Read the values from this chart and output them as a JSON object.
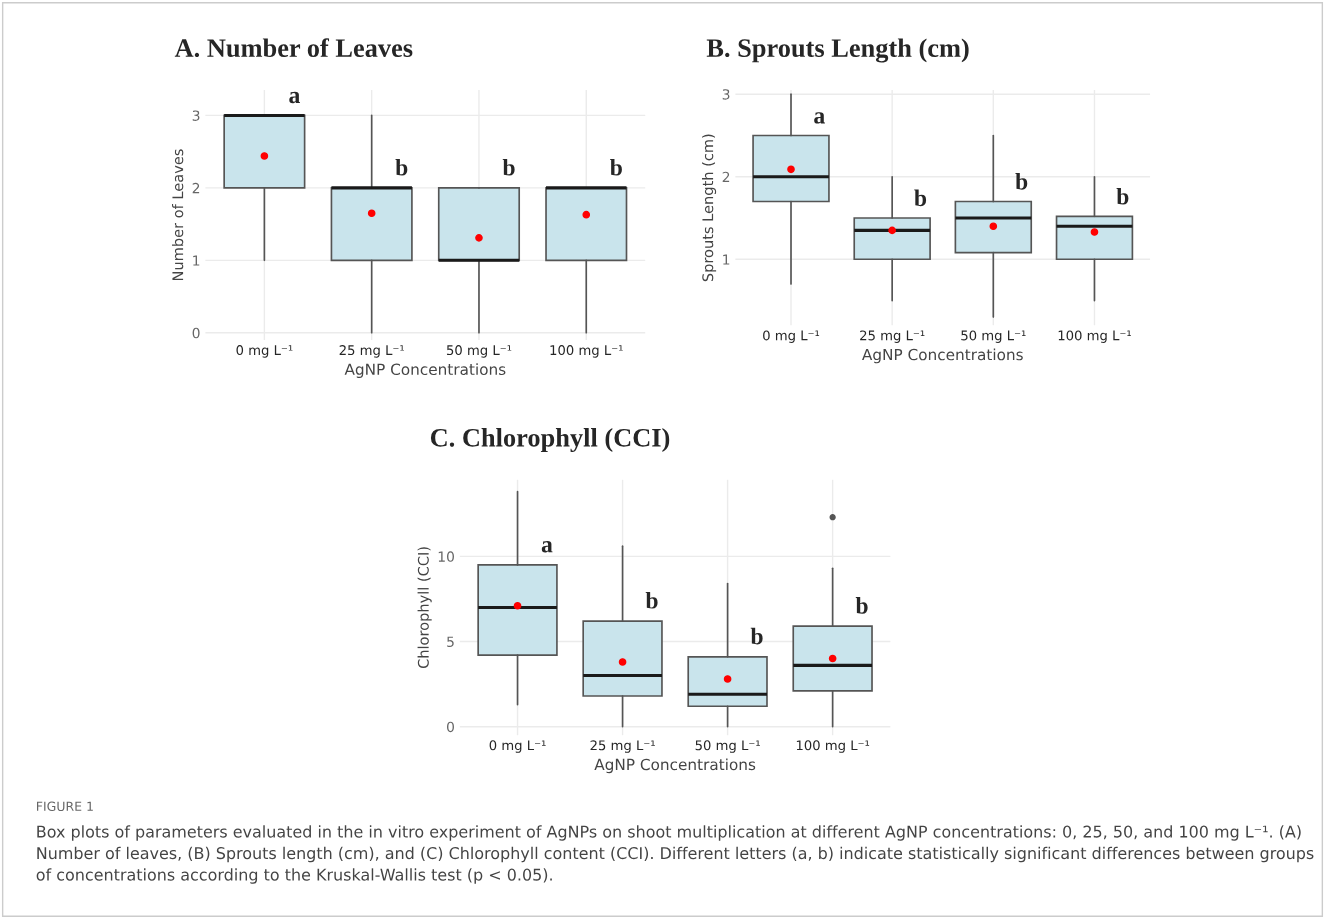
{
  "chart_data": [
    {
      "type": "box",
      "title": "A. Number of Leaves",
      "xlabel": "AgNP Concentrations",
      "ylabel": "Number of Leaves",
      "categories": [
        "0 mg L⁻¹",
        "25 mg L⁻¹",
        "50 mg L⁻¹",
        "100 mg L⁻¹"
      ],
      "ylim": [
        -0.1,
        3.35
      ],
      "yticks": [
        0,
        1,
        2,
        3
      ],
      "grid": true,
      "series": [
        {
          "color": "#c9e4ec",
          "boxes": [
            {
              "low": 1,
              "q1": 2,
              "median": 3,
              "q3": 3,
              "high": 3,
              "mean": 2.44
            },
            {
              "low": 0,
              "q1": 1,
              "median": 2,
              "q3": 2,
              "high": 3,
              "mean": 1.65
            },
            {
              "low": 0,
              "q1": 1,
              "median": 1,
              "q3": 2,
              "high": 2,
              "mean": 1.31
            },
            {
              "low": 0,
              "q1": 1,
              "median": 2,
              "q3": 2,
              "high": 2,
              "mean": 1.63
            }
          ]
        }
      ],
      "annotations": [
        "a",
        "b",
        "b",
        "b"
      ]
    },
    {
      "type": "box",
      "title": "B. Sprouts Length (cm)",
      "xlabel": "AgNP Concentrations",
      "ylabel": "Sprouts Length (cm)",
      "categories": [
        "0 mg L⁻¹",
        "25 mg L⁻¹",
        "50 mg L⁻¹",
        "100 mg L⁻¹"
      ],
      "ylim": [
        0.2,
        3.05
      ],
      "yticks": [
        1,
        2,
        3
      ],
      "grid": true,
      "series": [
        {
          "color": "#c9e4ec",
          "boxes": [
            {
              "low": 0.7,
              "q1": 1.7,
              "median": 2.0,
              "q3": 2.5,
              "high": 3.0,
              "mean": 2.09
            },
            {
              "low": 0.5,
              "q1": 1.0,
              "median": 1.35,
              "q3": 1.5,
              "high": 2.0,
              "mean": 1.35
            },
            {
              "low": 0.3,
              "q1": 1.08,
              "median": 1.5,
              "q3": 1.7,
              "high": 2.5,
              "mean": 1.4
            },
            {
              "low": 0.5,
              "q1": 1.0,
              "median": 1.4,
              "q3": 1.52,
              "high": 2.0,
              "mean": 1.33
            }
          ]
        }
      ],
      "annotations": [
        "a",
        "b",
        "b",
        "b"
      ]
    },
    {
      "type": "box",
      "title": "C. Chlorophyll (CCI)",
      "xlabel": "AgNP Concentrations",
      "ylabel": "Chlorophyll (CCI)",
      "categories": [
        "0 mg L⁻¹",
        "25 mg L⁻¹",
        "50 mg L⁻¹",
        "100 mg L⁻¹"
      ],
      "ylim": [
        -0.5,
        14.5
      ],
      "yticks": [
        0,
        5,
        10
      ],
      "grid": true,
      "series": [
        {
          "color": "#c9e4ec",
          "boxes": [
            {
              "low": 1.3,
              "q1": 4.2,
              "median": 7.0,
              "q3": 9.5,
              "high": 13.8,
              "mean": 7.1
            },
            {
              "low": 0,
              "q1": 1.8,
              "median": 3.0,
              "q3": 6.2,
              "high": 10.6,
              "mean": 3.8
            },
            {
              "low": 0,
              "q1": 1.2,
              "median": 1.9,
              "q3": 4.1,
              "high": 8.4,
              "mean": 2.8
            },
            {
              "low": 0,
              "q1": 2.1,
              "median": 3.6,
              "q3": 5.9,
              "high": 9.3,
              "mean": 4.0,
              "outliers": [
                12.3
              ]
            }
          ]
        }
      ],
      "annotations": [
        "a",
        "b",
        "b",
        "b",
        "FIGURE 1",
        "Box plots of parameters evaluated in the in vitro experiment of AgNPs on shoot multiplication at different AgNP concentrations: 0, 25, 50, and 100 mg L⁻¹. (A) Number of leaves, (B) Sprouts length (cm), and (C) Chlorophyll content (CCI). Different letters (a, b) indicate statistically significant differences between groups of concentrations according to the Kruskal-Wallis test (p < 0.05)."
      ]
    }
  ]
}
